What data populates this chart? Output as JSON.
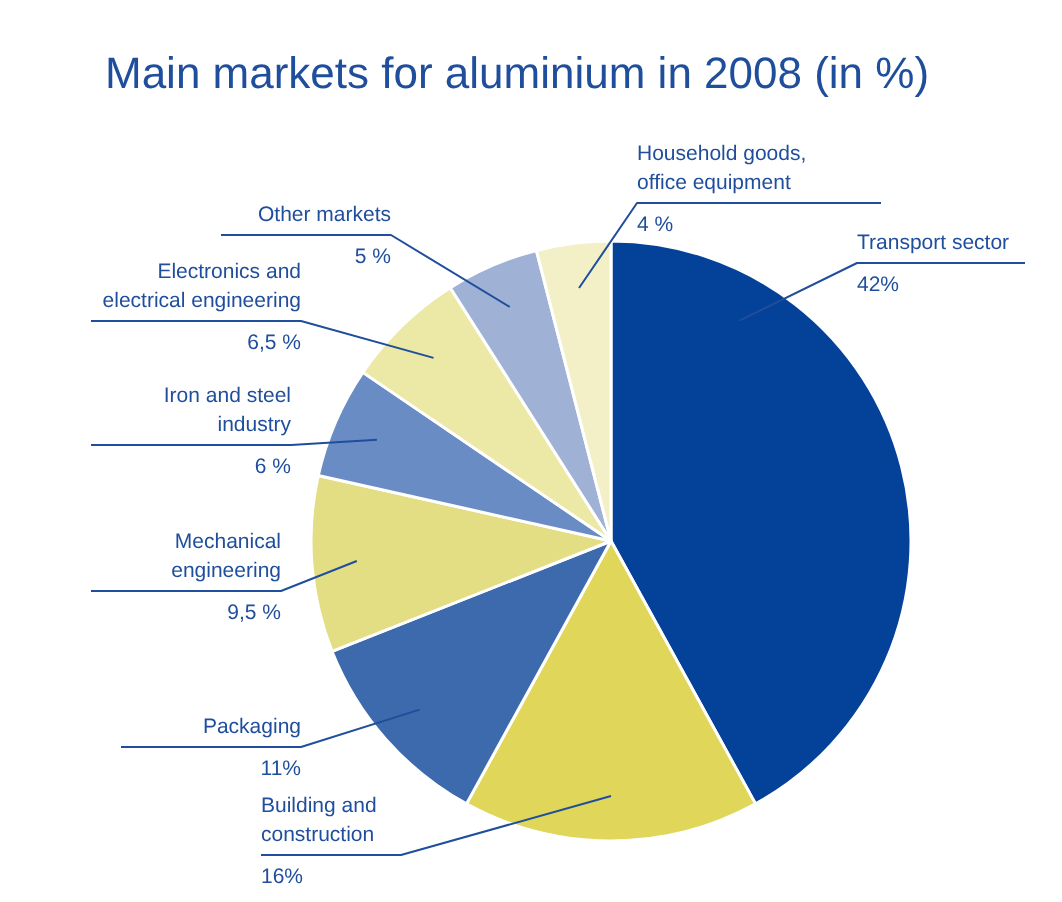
{
  "chart_data": {
    "type": "pie",
    "title": "Main markets for aluminium in 2008 (in %)",
    "categories": [
      "Transport sector",
      "Building and\nconstruction",
      "Packaging",
      "Mechanical\nengineering",
      "Iron and steel\nindustry",
      "Electronics and\nelectrical engineering",
      "Other markets",
      "Household goods,\noffice equipment"
    ],
    "values": [
      42,
      16,
      11,
      9.5,
      6,
      6.5,
      5,
      4
    ],
    "value_labels": [
      "42%",
      "16%",
      "11%",
      "9,5 %",
      "6 %",
      "6,5 %",
      "5 %",
      "4 %"
    ],
    "colors": [
      "#044198",
      "#dfd65a",
      "#3d6aad",
      "#e3de83",
      "#6a8cc4",
      "#ece8a6",
      "#9fb2d6",
      "#f3f0c8"
    ]
  }
}
